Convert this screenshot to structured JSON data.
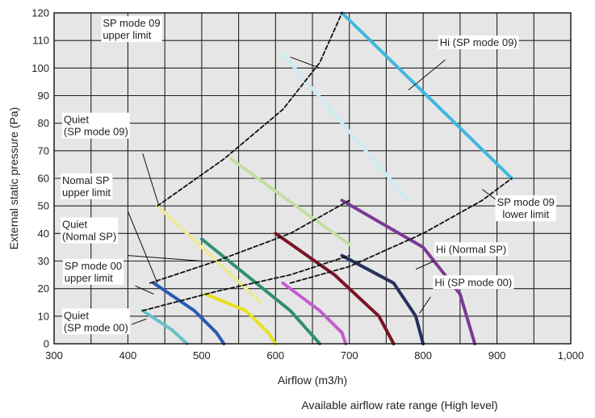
{
  "chart_data": {
    "type": "line",
    "xlabel": "Airflow (m3/h)",
    "ylabel": "External static pressure (Pa)",
    "caption": "Available airflow rate range (High level)",
    "xlim": [
      300,
      1000
    ],
    "ylim": [
      0,
      120
    ],
    "x_ticks": [
      300,
      400,
      500,
      600,
      700,
      800,
      900,
      1000
    ],
    "x_tick_labels": [
      "300",
      "400",
      "500",
      "600",
      "700",
      "800",
      "900",
      "1,000"
    ],
    "y_ticks": [
      0,
      10,
      20,
      30,
      40,
      50,
      60,
      70,
      80,
      90,
      100,
      110,
      120
    ],
    "grid": true,
    "curves": [
      {
        "id": "hi-sp09",
        "color": "#3fb6e0",
        "style": "solid",
        "x": [
          690,
          920
        ],
        "y": [
          120,
          60
        ]
      },
      {
        "id": "faint-cyan",
        "color": "#ccebf2",
        "style": "solid",
        "x": [
          610,
          780
        ],
        "y": [
          105,
          52
        ]
      },
      {
        "id": "light-green",
        "color": "#c2dea0",
        "style": "solid",
        "x": [
          540,
          700
        ],
        "y": [
          67,
          36
        ]
      },
      {
        "id": "purple",
        "color": "#7b3a94",
        "style": "solid",
        "x": [
          690,
          800,
          850,
          870
        ],
        "y": [
          52,
          35,
          18,
          0
        ]
      },
      {
        "id": "dark-red",
        "color": "#7a1326",
        "style": "solid",
        "x": [
          600,
          680,
          740,
          760
        ],
        "y": [
          40,
          25,
          10,
          0
        ]
      },
      {
        "id": "navy",
        "color": "#25305e",
        "style": "solid",
        "x": [
          690,
          760,
          790,
          800
        ],
        "y": [
          32,
          22,
          10,
          0
        ]
      },
      {
        "id": "light-yellow",
        "color": "#ece99a",
        "style": "solid",
        "x": [
          440,
          500,
          560,
          580
        ],
        "y": [
          50,
          35,
          20,
          15
        ]
      },
      {
        "id": "teal-green",
        "color": "#2f8f6e",
        "style": "solid",
        "x": [
          500,
          560,
          620,
          660
        ],
        "y": [
          38,
          25,
          12,
          0
        ]
      },
      {
        "id": "magenta",
        "color": "#c25ecb",
        "style": "solid",
        "x": [
          610,
          660,
          690,
          695
        ],
        "y": [
          22,
          12,
          4,
          0
        ]
      },
      {
        "id": "yellow",
        "color": "#e8e020",
        "style": "solid",
        "x": [
          505,
          560,
          590,
          600
        ],
        "y": [
          18,
          12,
          4,
          0
        ]
      },
      {
        "id": "blue",
        "color": "#2a5bb3",
        "style": "solid",
        "x": [
          435,
          490,
          520,
          530
        ],
        "y": [
          22,
          12,
          4,
          0
        ]
      },
      {
        "id": "light-teal",
        "color": "#68c1c8",
        "style": "solid",
        "x": [
          420,
          460,
          480
        ],
        "y": [
          12,
          5,
          0
        ]
      },
      {
        "id": "sp09-upper",
        "color": "#111111",
        "style": "dashed",
        "x": [
          440,
          530,
          610,
          660,
          690
        ],
        "y": [
          50,
          67,
          85,
          102,
          120
        ]
      },
      {
        "id": "sp09-lower",
        "color": "#111111",
        "style": "dashed",
        "x": [
          620,
          700,
          800,
          880,
          920
        ],
        "y": [
          22,
          28,
          40,
          52,
          60
        ]
      },
      {
        "id": "nsp-upper",
        "color": "#111111",
        "style": "dashed",
        "x": [
          430,
          520,
          620,
          700
        ],
        "y": [
          22,
          30,
          40,
          52
        ]
      },
      {
        "id": "sp00-upper",
        "color": "#111111",
        "style": "dashed",
        "x": [
          420,
          520,
          620,
          700
        ],
        "y": [
          12,
          19,
          25,
          32
        ]
      }
    ],
    "annotations": [
      {
        "lines": [
          "SP mode 09",
          "upper limit"
        ],
        "label_at": [
          366,
          115
        ],
        "align": "start",
        "arrow_from": [
          620,
          104
        ],
        "arrow_to": [
          660,
          100
        ]
      },
      {
        "lines": [
          "Hi (SP mode 09)"
        ],
        "label_at": [
          875,
          108
        ],
        "align": "middle",
        "arrow_from": [
          830,
          103
        ],
        "arrow_to": [
          780,
          92
        ]
      },
      {
        "lines": [
          "SP mode 09",
          "lower limit"
        ],
        "label_at": [
          939,
          50
        ],
        "align": "middle",
        "arrow_from": [
          900,
          52
        ],
        "arrow_to": [
          880,
          56
        ]
      },
      {
        "lines": [
          "Hi (Normal SP)"
        ],
        "label_at": [
          865,
          33
        ],
        "align": "middle",
        "arrow_from": [
          815,
          30
        ],
        "arrow_to": [
          790,
          27
        ]
      },
      {
        "lines": [
          "Hi (SP mode 00)"
        ],
        "label_at": [
          868,
          21
        ],
        "align": "middle",
        "arrow_from": [
          810,
          17
        ],
        "arrow_to": [
          795,
          11
        ]
      },
      {
        "lines": [
          "Quiet",
          "(SP mode 09)"
        ],
        "label_at": [
          313,
          80
        ],
        "align": "start",
        "arrow_from": [
          420,
          69
        ],
        "arrow_to": [
          442,
          50
        ]
      },
      {
        "lines": [
          "Nomal SP",
          "upper limit"
        ],
        "label_at": [
          311,
          58
        ],
        "align": "start",
        "arrow_from": [
          400,
          48
        ],
        "arrow_to": [
          440,
          22
        ]
      },
      {
        "lines": [
          "Quiet",
          "(Nomal SP)"
        ],
        "label_at": [
          311,
          42
        ],
        "align": "start",
        "arrow_from": [
          400,
          32
        ],
        "arrow_to": [
          500,
          30
        ]
      },
      {
        "lines": [
          "SP mode 00",
          "upper limit"
        ],
        "label_at": [
          314,
          27
        ],
        "align": "start",
        "arrow_from": [
          410,
          21
        ],
        "arrow_to": [
          435,
          18
        ]
      },
      {
        "lines": [
          "Quiet",
          "(SP mode 00)"
        ],
        "label_at": [
          313,
          9
        ],
        "align": "start",
        "arrow_from": [
          405,
          7
        ],
        "arrow_to": [
          425,
          9
        ]
      }
    ]
  }
}
